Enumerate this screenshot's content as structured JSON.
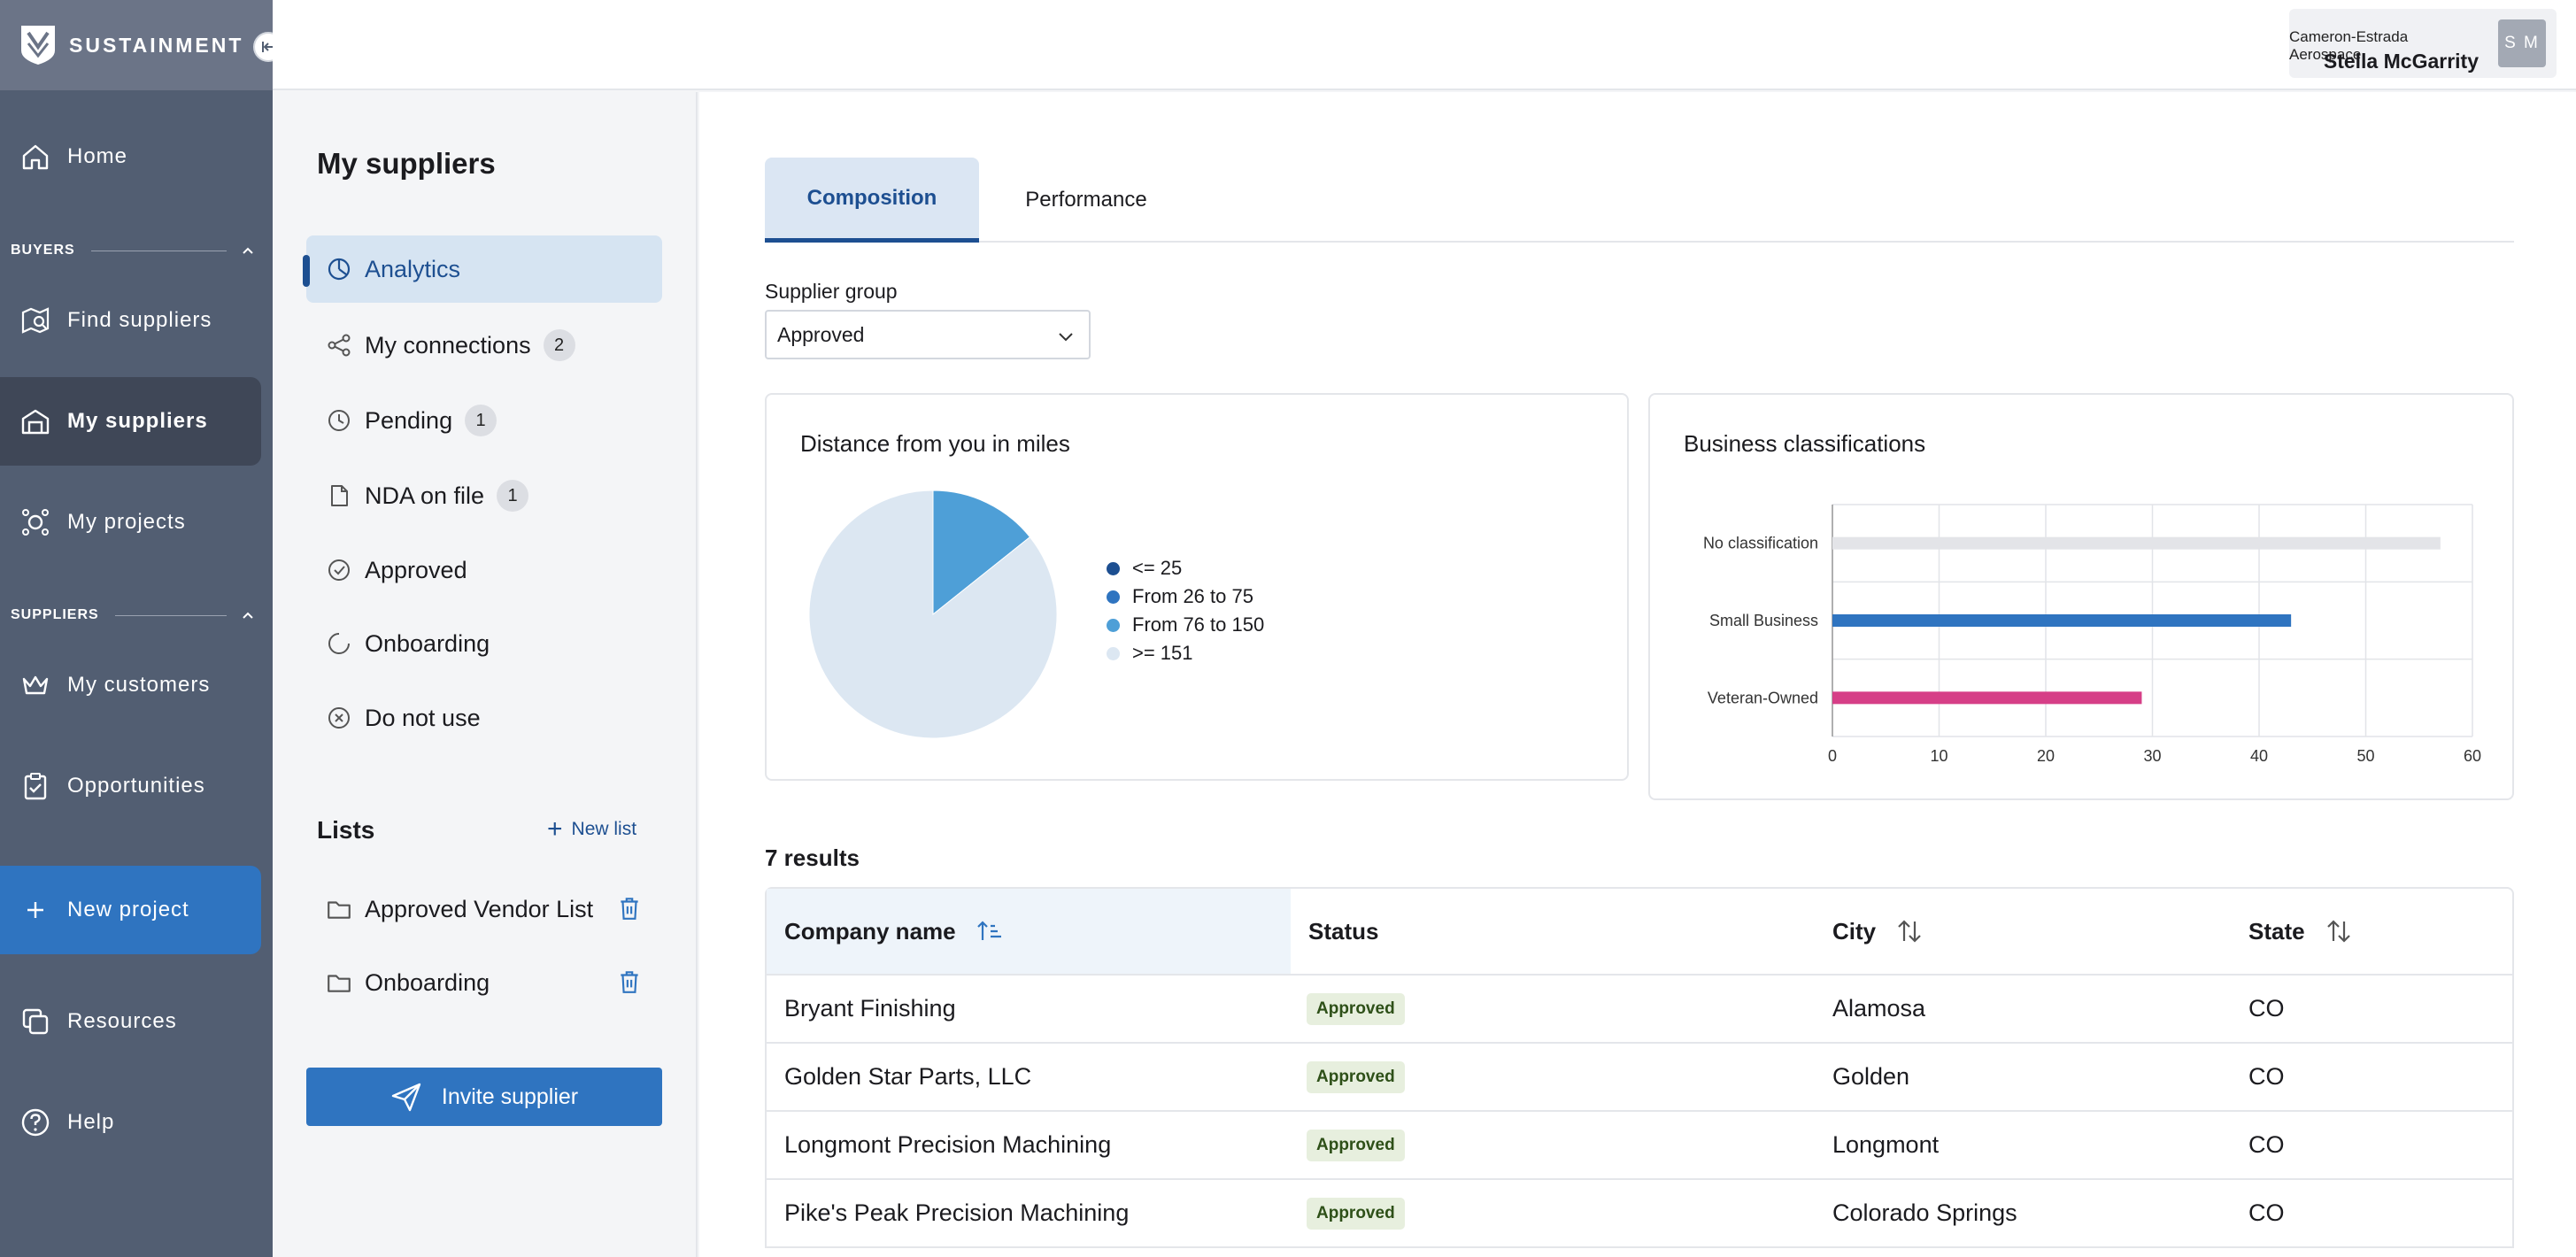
{
  "brand": {
    "name": "SUSTAINMENT"
  },
  "user": {
    "org": "Cameron-Estrada Aerospace",
    "name": "Stella McGarrity",
    "initials": "S M"
  },
  "nav": {
    "home": "Home",
    "buyers_section": "BUYERS",
    "find_suppliers": "Find suppliers",
    "my_suppliers": "My suppliers",
    "my_projects": "My projects",
    "suppliers_section": "SUPPLIERS",
    "my_customers": "My customers",
    "opportunities": "Opportunities",
    "new_project": "New project",
    "resources": "Resources",
    "help": "Help"
  },
  "subnav": {
    "title": "My suppliers",
    "items": [
      {
        "label": "Analytics",
        "icon": "chart-pie-icon",
        "count": null
      },
      {
        "label": "My connections",
        "icon": "share-icon",
        "count": "2"
      },
      {
        "label": "Pending",
        "icon": "clock-icon",
        "count": "1"
      },
      {
        "label": "NDA on file",
        "icon": "document-icon",
        "count": "1"
      },
      {
        "label": "Approved",
        "icon": "check-circle-icon",
        "count": null
      },
      {
        "label": "Onboarding",
        "icon": "circle-progress-icon",
        "count": null
      },
      {
        "label": "Do not use",
        "icon": "x-circle-icon",
        "count": null
      }
    ],
    "lists_title": "Lists",
    "new_list": "New list",
    "lists": [
      {
        "label": "Approved Vendor List"
      },
      {
        "label": "Onboarding"
      }
    ],
    "invite_button": "Invite supplier"
  },
  "tabs": [
    {
      "label": "Composition",
      "active": true
    },
    {
      "label": "Performance",
      "active": false
    }
  ],
  "supplier_group": {
    "label": "Supplier group",
    "value": "Approved"
  },
  "colors": {
    "accent": "#2f74c0",
    "dark_accent": "#1d4f91",
    "nav_bg": "#525e72",
    "approved_badge": "#e7efde"
  },
  "chart_data": [
    {
      "type": "pie",
      "title": "Distance from you in miles",
      "categories": [
        "<= 25",
        "From 26 to 75",
        "From 76 to 150",
        ">= 151"
      ],
      "values": [
        0,
        0,
        1,
        6
      ],
      "colors": [
        "#1d4f91",
        "#2f74c0",
        "#4e9fd7",
        "#dce7f2"
      ],
      "legend": "right"
    },
    {
      "type": "bar",
      "orientation": "horizontal",
      "title": "Business classifications",
      "categories": [
        "No classification",
        "Small Business",
        "Veteran-Owned"
      ],
      "values": [
        57,
        43,
        29
      ],
      "colors": [
        "#e3e4e8",
        "#2f74c0",
        "#d63f87"
      ],
      "xlim": [
        0,
        60
      ],
      "xticks": [
        "0",
        "10",
        "20",
        "30",
        "40",
        "50",
        "60"
      ],
      "grid": true
    }
  ],
  "results": {
    "label": "7 results"
  },
  "table": {
    "columns": [
      "Company name",
      "Status",
      "City",
      "State"
    ],
    "rows": [
      {
        "company": "Bryant Finishing",
        "status": "Approved",
        "city": "Alamosa",
        "state": "CO"
      },
      {
        "company": "Golden Star Parts, LLC",
        "status": "Approved",
        "city": "Golden",
        "state": "CO"
      },
      {
        "company": "Longmont Precision Machining",
        "status": "Approved",
        "city": "Longmont",
        "state": "CO"
      },
      {
        "company": "Pike's Peak Precision Machining",
        "status": "Approved",
        "city": "Colorado Springs",
        "state": "CO"
      }
    ]
  }
}
